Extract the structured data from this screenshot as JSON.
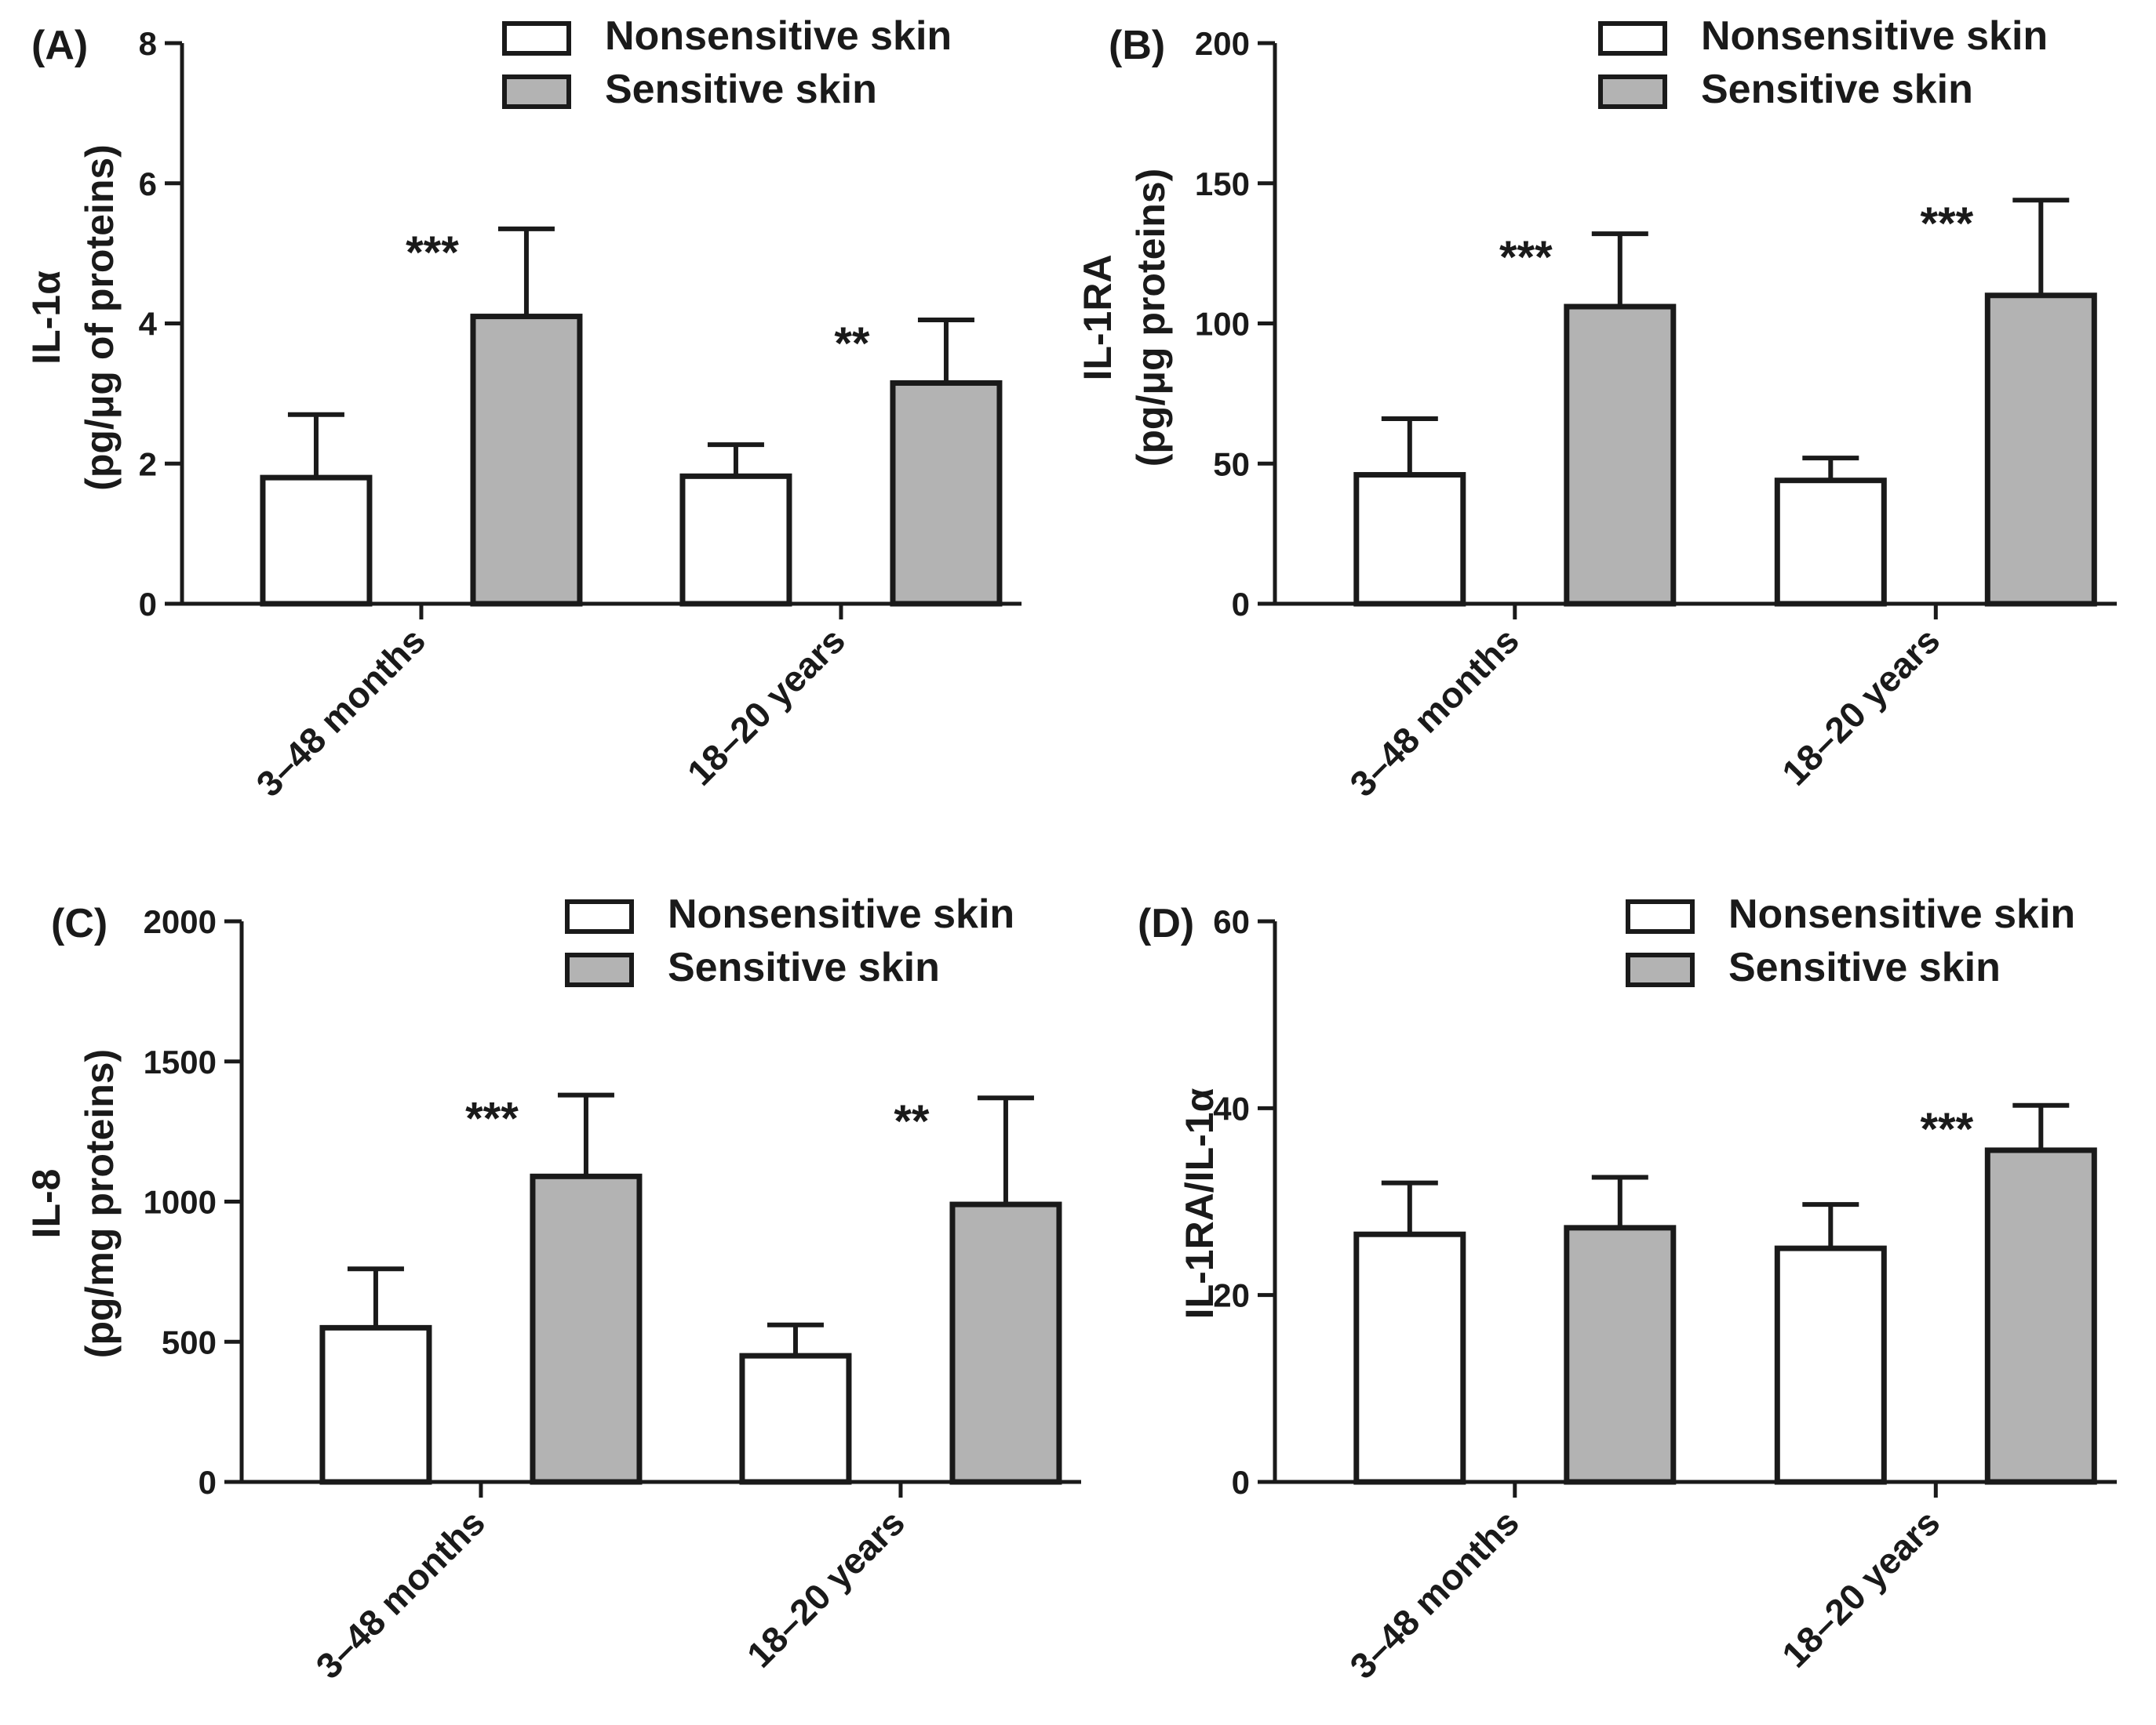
{
  "figure": {
    "colors": {
      "nonsensitive": "#ffffff",
      "sensitive": "#b3b3b3",
      "ink": "#1a1a1a"
    }
  },
  "chart_data": [
    {
      "type": "bar",
      "panel_label": "(A)",
      "ylabel_line1": "IL-1α",
      "ylabel_line2": "(pg/μg of proteins)",
      "ylim": [
        0,
        8
      ],
      "yticks": [
        0,
        2,
        4,
        6,
        8
      ],
      "categories": [
        "3–48 months",
        "18–20 years"
      ],
      "series": [
        {
          "name": "Nonsensitive skin",
          "values": [
            1.8,
            1.82
          ],
          "errors": [
            0.9,
            0.45
          ]
        },
        {
          "name": "Sensitive skin",
          "values": [
            4.1,
            3.15
          ],
          "errors": [
            1.25,
            0.9
          ]
        }
      ],
      "annotations": [
        "***",
        "**"
      ],
      "legend": [
        "Nonsensitive skin",
        "Sensitive skin"
      ]
    },
    {
      "type": "bar",
      "panel_label": "(B)",
      "ylabel_line1": "IL-1RA",
      "ylabel_line2": "(pg/μg proteins)",
      "ylim": [
        0,
        200
      ],
      "yticks": [
        0,
        50,
        100,
        150,
        200
      ],
      "categories": [
        "3–48 months",
        "18–20 years"
      ],
      "series": [
        {
          "name": "Nonsensitive skin",
          "values": [
            46,
            44
          ],
          "errors": [
            20,
            8
          ]
        },
        {
          "name": "Sensitive skin",
          "values": [
            106,
            110
          ],
          "errors": [
            26,
            34
          ]
        }
      ],
      "annotations": [
        "***",
        "***"
      ],
      "legend": [
        "Nonsensitive skin",
        "Sensitive skin"
      ]
    },
    {
      "type": "bar",
      "panel_label": "(C)",
      "ylabel_line1": "IL-8",
      "ylabel_line2": "(pg/mg proteins)",
      "ylim": [
        0,
        2000
      ],
      "yticks": [
        0,
        500,
        1000,
        1500,
        2000
      ],
      "categories": [
        "3–48 months",
        "18–20 years"
      ],
      "series": [
        {
          "name": "Nonsensitive skin",
          "values": [
            550,
            450
          ],
          "errors": [
            210,
            110
          ]
        },
        {
          "name": "Sensitive skin",
          "values": [
            1090,
            990
          ],
          "errors": [
            290,
            380
          ]
        }
      ],
      "annotations": [
        "***",
        "**"
      ],
      "legend": [
        "Nonsensitive skin",
        "Sensitive skin"
      ]
    },
    {
      "type": "bar",
      "panel_label": "(D)",
      "ylabel_line1": "IL-1RA/IL-1α",
      "ylabel_line2": "",
      "ylim": [
        0,
        60
      ],
      "yticks": [
        0,
        20,
        40,
        60
      ],
      "categories": [
        "3–48 months",
        "18–20 years"
      ],
      "series": [
        {
          "name": "Nonsensitive skin",
          "values": [
            26.5,
            25
          ],
          "errors": [
            5.5,
            4.7
          ]
        },
        {
          "name": "Sensitive skin",
          "values": [
            27.2,
            35.5
          ],
          "errors": [
            5.4,
            4.8
          ]
        }
      ],
      "annotations": [
        "",
        "***"
      ],
      "legend": [
        "Nonsensitive skin",
        "Sensitive skin"
      ]
    }
  ]
}
